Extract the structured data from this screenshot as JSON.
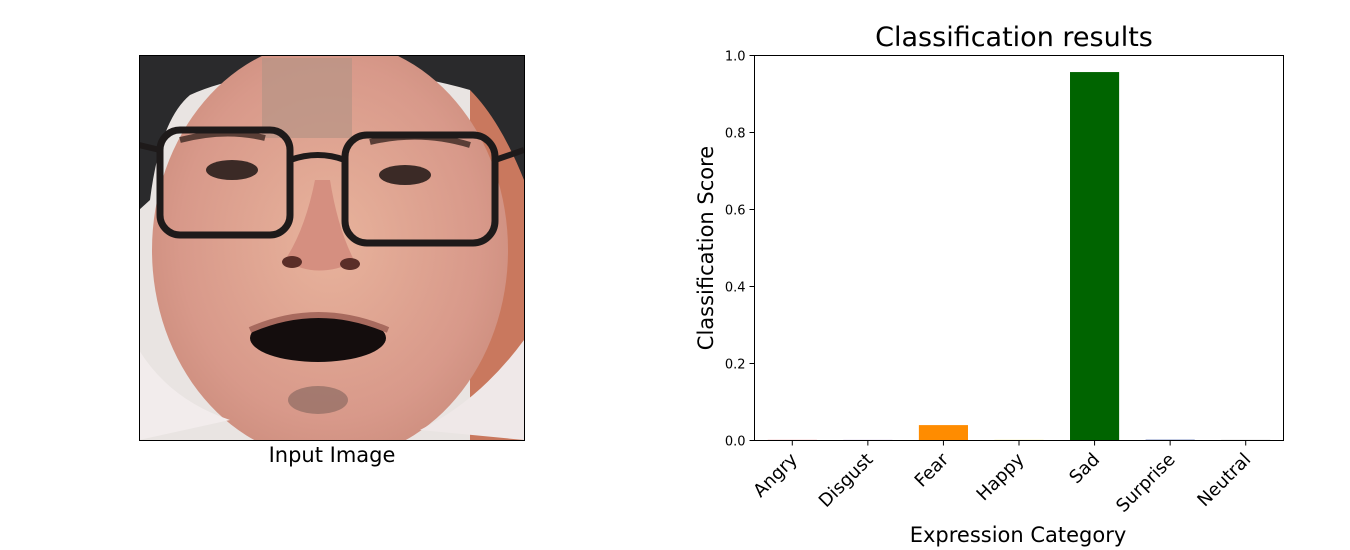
{
  "input_panel": {
    "caption": "Input Image"
  },
  "chart_data": {
    "type": "bar",
    "title": "Classification results",
    "xlabel": "Expression Category",
    "ylabel": "Classification Score",
    "categories": [
      "Angry",
      "Disgust",
      "Fear",
      "Happy",
      "Sad",
      "Surprise",
      "Neutral"
    ],
    "values": [
      0.001,
      0.0005,
      0.04,
      0.0005,
      0.957,
      0.002,
      0.0005
    ],
    "colors": [
      "#d62728",
      "#9467bd",
      "#ff8c00",
      "#e6c800",
      "#006400",
      "#1f3a93",
      "#7f7f7f"
    ],
    "ylim": [
      0,
      1.0
    ],
    "yticks": [
      "0.0",
      "0.2",
      "0.4",
      "0.6",
      "0.8",
      "1.0"
    ],
    "ytick_values": [
      0,
      0.2,
      0.4,
      0.6,
      0.8,
      1.0
    ],
    "grid": false,
    "legend": "none"
  }
}
